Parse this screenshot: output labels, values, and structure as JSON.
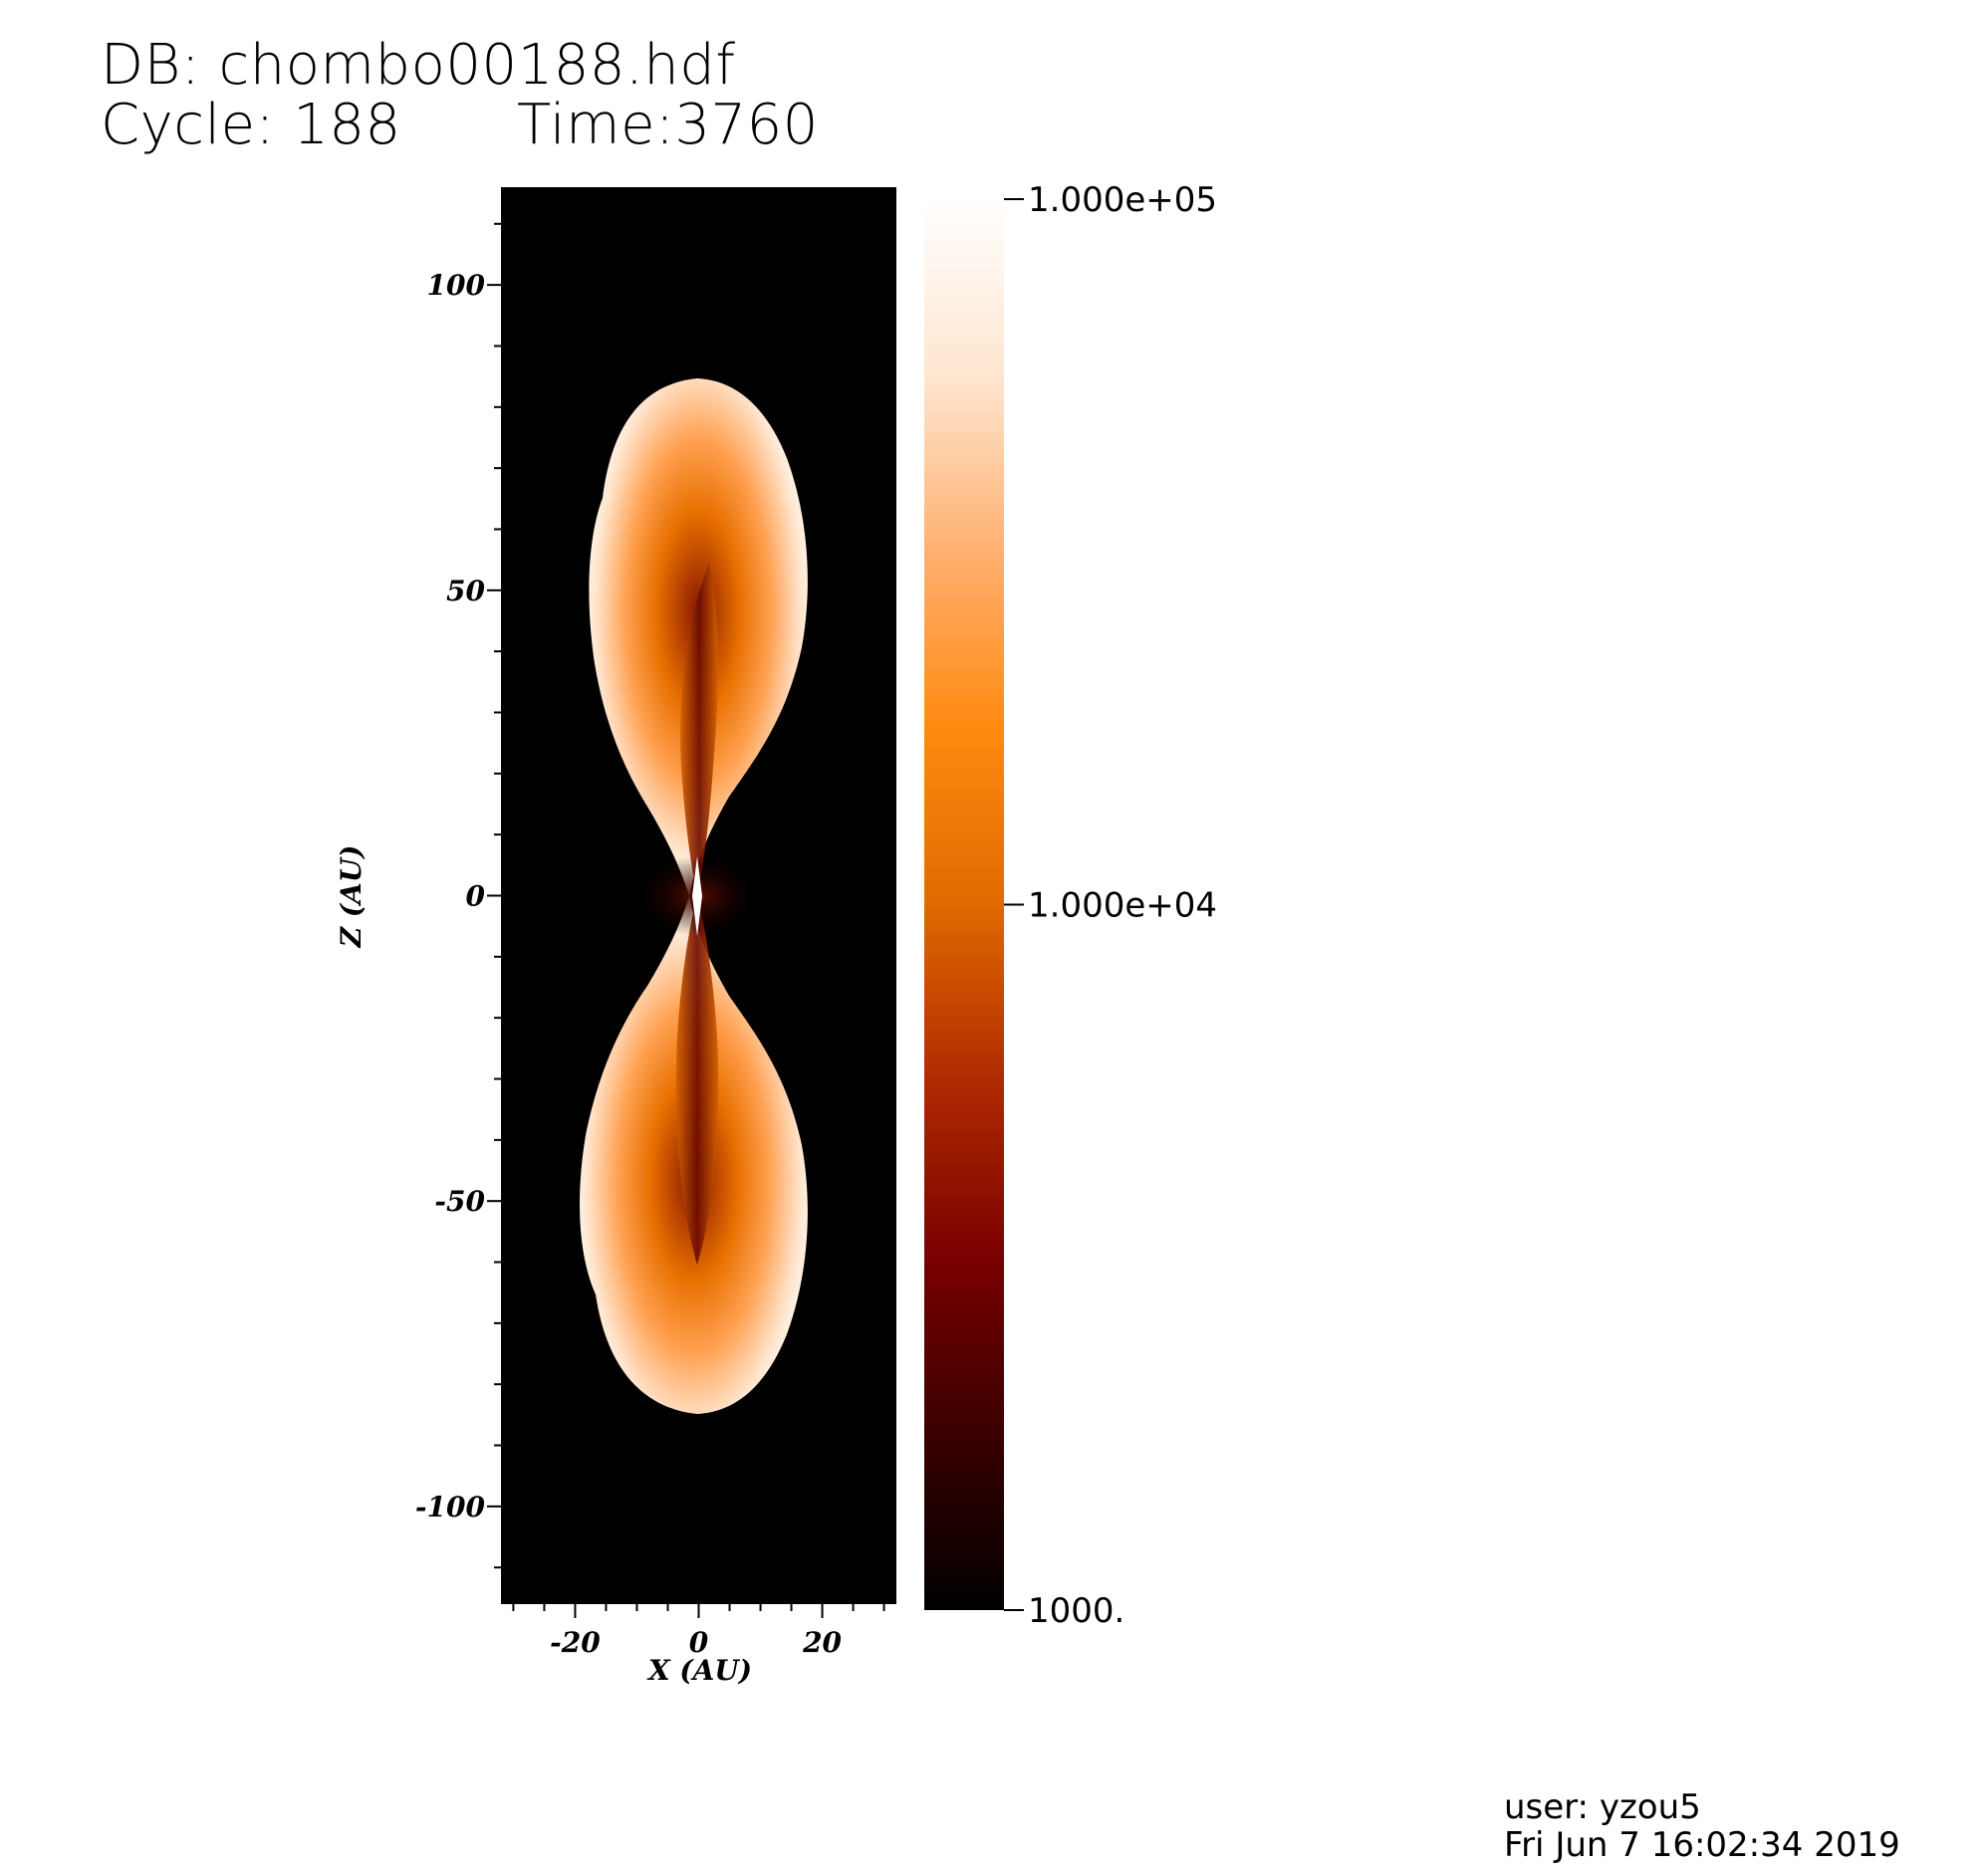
{
  "header": {
    "db_label": "DB: chombo00188.hdf",
    "cycle_label": "Cycle: 188",
    "time_label": "Time:3760"
  },
  "footer": {
    "user_label": "user: yzou5",
    "date_label": "Fri Jun  7 16:02:34 2019"
  },
  "chart_data": {
    "type": "heatmap",
    "xlabel": "X (AU)",
    "ylabel": "Z (AU)",
    "xlim": [
      -32,
      32
    ],
    "ylim": [
      -116,
      116
    ],
    "x_ticks": [
      {
        "value": -20,
        "label": "-20"
      },
      {
        "value": 0,
        "label": "0"
      },
      {
        "value": 20,
        "label": "20"
      }
    ],
    "y_ticks": [
      {
        "value": 100,
        "label": "100"
      },
      {
        "value": 50,
        "label": "50"
      },
      {
        "value": 0,
        "label": "0"
      },
      {
        "value": -50,
        "label": "-50"
      },
      {
        "value": -100,
        "label": "-100"
      }
    ],
    "colorbar": {
      "scale": "log",
      "range": [
        1000,
        100000
      ],
      "ticks": [
        {
          "value": 100000,
          "label": "1.000e+05"
        },
        {
          "value": 10000,
          "label": "1.000e+04"
        },
        {
          "value": 1000,
          "label": "1000."
        }
      ],
      "colormap": [
        "#000000",
        "#3a0000",
        "#7a0000",
        "#b02a00",
        "#e06a00",
        "#ff8a10",
        "#ffb070",
        "#ffe6d0",
        "#ffffff"
      ]
    },
    "background_color": "#000000"
  }
}
